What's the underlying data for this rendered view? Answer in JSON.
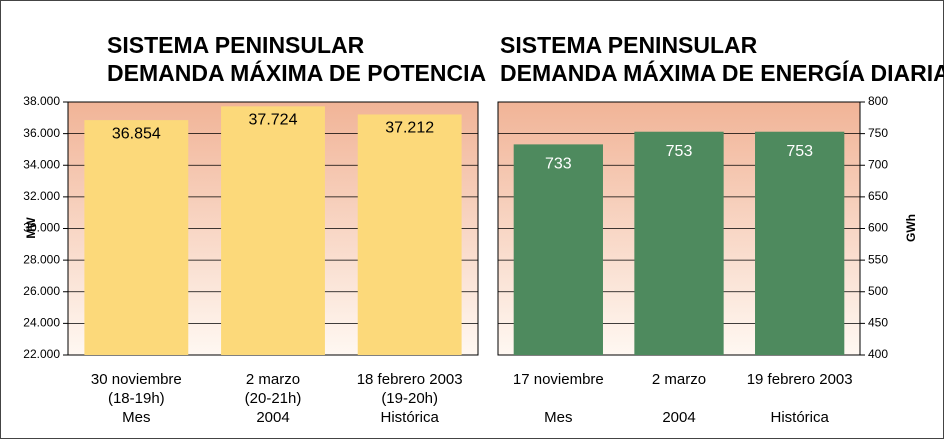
{
  "chart_data": [
    {
      "type": "bar",
      "title": [
        "SISTEMA PENINSULAR",
        "DEMANDA MÁXIMA DE POTENCIA"
      ],
      "ylabel": "MW",
      "categories": [
        [
          "30 noviembre",
          "(18-19h)",
          "Mes"
        ],
        [
          "2 marzo",
          "(20-21h)",
          "2004"
        ],
        [
          "18 febrero 2003",
          "(19-20h)",
          "Histórica"
        ]
      ],
      "values": [
        36854,
        37724,
        37212
      ],
      "value_labels": [
        "36.854",
        "37.724",
        "37.212"
      ],
      "color": "#fcd97a",
      "ylim": [
        22000,
        38000
      ],
      "yticks": [
        {
          "value": 22000,
          "label": "22.000"
        },
        {
          "value": 24000,
          "label": "24.000"
        },
        {
          "value": 26000,
          "label": "26.000"
        },
        {
          "value": 28000,
          "label": "28.000"
        },
        {
          "value": 30000,
          "label": "30.000"
        },
        {
          "value": 32000,
          "label": "32.000"
        },
        {
          "value": 34000,
          "label": "34.000"
        },
        {
          "value": 36000,
          "label": "36.000"
        },
        {
          "value": 38000,
          "label": "38.000"
        }
      ],
      "grid": true
    },
    {
      "type": "bar",
      "title": [
        "SISTEMA PENINSULAR",
        "DEMANDA MÁXIMA DE ENERGÍA DIARIA"
      ],
      "ylabel": "GWh",
      "categories": [
        [
          "17 noviembre",
          "Mes"
        ],
        [
          "2 marzo",
          "2004"
        ],
        [
          "19 febrero 2003",
          "Histórica"
        ]
      ],
      "values": [
        733,
        753,
        753
      ],
      "color": "#4e8a5e",
      "ylim": [
        400,
        800
      ],
      "yticks": [
        400,
        450,
        500,
        550,
        600,
        650,
        700,
        750,
        800
      ],
      "grid": true
    }
  ]
}
